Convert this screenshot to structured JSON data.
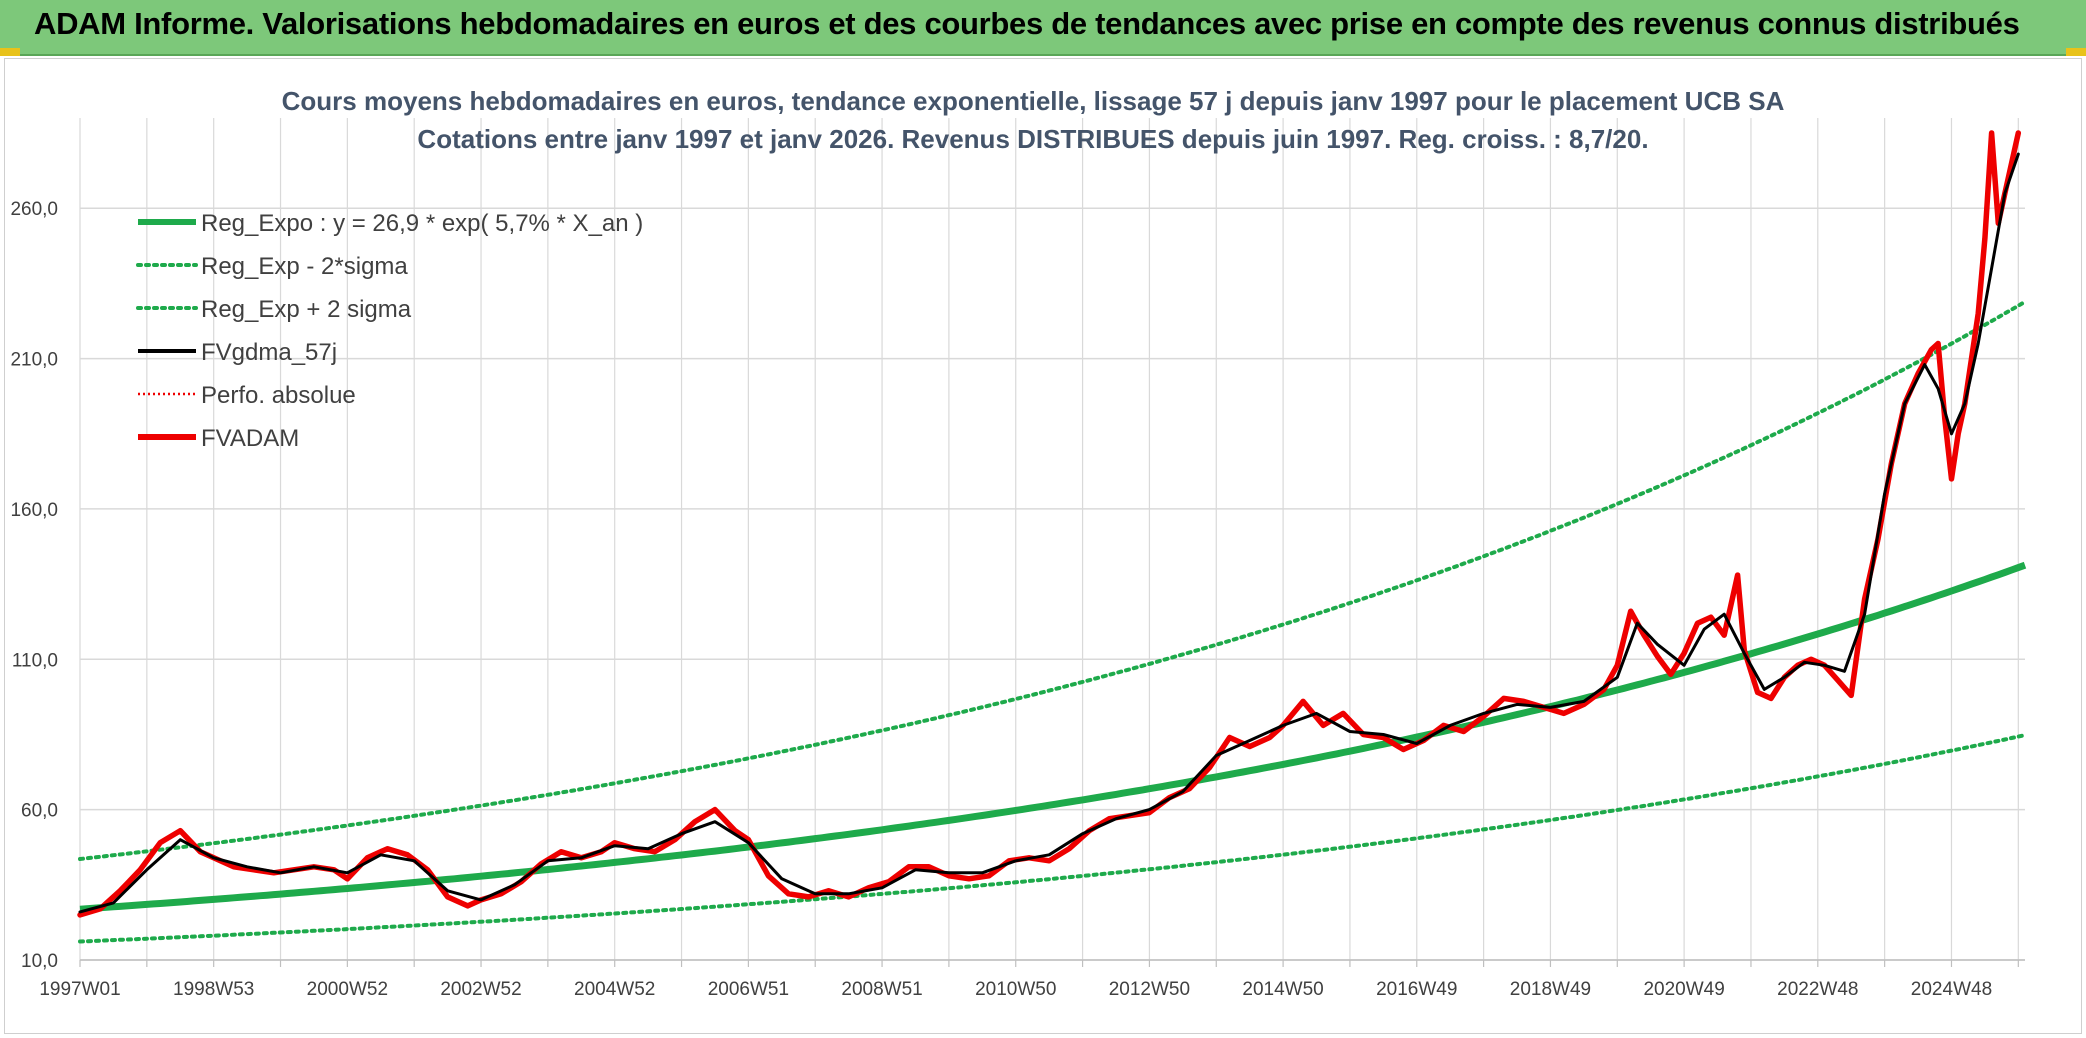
{
  "banner": {
    "title": "ADAM Informe. Valorisations hebdomadaires en euros et des courbes de tendances avec prise en compte des revenus connus distribués"
  },
  "colors": {
    "banner_bg": "#7dc87a",
    "reg_green": "#1eaa4b",
    "fvadam_red": "#ee0000",
    "smooth_black": "#000000",
    "grid": "#d9d9d9",
    "title_text": "#44546a"
  },
  "chart_data": {
    "type": "line",
    "title": "Cours moyens hebdomadaires en euros, tendance exponentielle, lissage 57 j depuis janv 1997 pour le placement UCB SA",
    "subtitle": "Cotations entre janv 1997 et janv 2026. Revenus DISTRIBUES depuis juin 1997. Reg. croiss. : 8,7/20.",
    "xlabel": "",
    "ylabel": "",
    "x_tick_labels": [
      "1997W01",
      "1998W53",
      "2000W52",
      "2002W52",
      "2004W52",
      "2006W51",
      "2008W51",
      "2010W50",
      "2012W50",
      "2014W50",
      "2016W49",
      "2018W49",
      "2020W49",
      "2022W48",
      "2024W48"
    ],
    "y_ticks": [
      "10,0",
      "60,0",
      "110,0",
      "160,0",
      "210,0",
      "260,0"
    ],
    "ylim": [
      10,
      290
    ],
    "xlim": [
      1997.0,
      2026.1
    ],
    "grid": true,
    "legend_position": "top-left",
    "legend": [
      {
        "label": "Reg_Expo : y = 26,9 * exp( 5,7% *  X_an )",
        "style": "solid-thick",
        "color": "#1eaa4b"
      },
      {
        "label": "Reg_Exp - 2*sigma",
        "style": "dotted",
        "color": "#1eaa4b"
      },
      {
        "label": "Reg_Exp + 2 sigma",
        "style": "dotted",
        "color": "#1eaa4b"
      },
      {
        "label": "FVgdma_57j",
        "style": "solid",
        "color": "#000000"
      },
      {
        "label": "Perfo. absolue",
        "style": "dotted-thin",
        "color": "#ee0000"
      },
      {
        "label": "FVADAM",
        "style": "solid-thick",
        "color": "#ee0000"
      }
    ],
    "regression": {
      "a": 26.9,
      "rate": 0.057,
      "lower_factor": 0.6,
      "upper_factor": 1.62
    },
    "series": [
      {
        "name": "FVADAM",
        "x": [
          1997.0,
          1997.3,
          1997.6,
          1997.9,
          1998.2,
          1998.5,
          1998.8,
          1999.0,
          1999.3,
          1999.6,
          1999.9,
          2000.2,
          2000.5,
          2000.8,
          2001.0,
          2001.3,
          2001.6,
          2001.9,
          2002.2,
          2002.5,
          2002.8,
          2003.0,
          2003.3,
          2003.6,
          2003.9,
          2004.2,
          2004.5,
          2004.8,
          2005.0,
          2005.3,
          2005.6,
          2005.9,
          2006.2,
          2006.5,
          2006.8,
          2007.0,
          2007.3,
          2007.6,
          2007.9,
          2008.2,
          2008.5,
          2008.8,
          2009.1,
          2009.4,
          2009.7,
          2010.0,
          2010.3,
          2010.6,
          2010.9,
          2011.2,
          2011.5,
          2011.8,
          2012.1,
          2012.4,
          2012.7,
          2013.0,
          2013.3,
          2013.6,
          2013.9,
          2014.2,
          2014.5,
          2014.8,
          2015.0,
          2015.3,
          2015.6,
          2015.9,
          2016.2,
          2016.5,
          2016.8,
          2017.1,
          2017.4,
          2017.7,
          2018.0,
          2018.3,
          2018.6,
          2018.9,
          2019.2,
          2019.5,
          2019.8,
          2020.0,
          2020.2,
          2020.4,
          2020.6,
          2020.8,
          2021.0,
          2021.2,
          2021.4,
          2021.6,
          2021.8,
          2021.9,
          2022.1,
          2022.3,
          2022.5,
          2022.7,
          2022.9,
          2023.1,
          2023.3,
          2023.5,
          2023.7,
          2023.9,
          2024.1,
          2024.3,
          2024.5,
          2024.7,
          2024.8,
          2024.9,
          2025.0,
          2025.1,
          2025.2,
          2025.3,
          2025.4,
          2025.5,
          2025.6,
          2025.7,
          2025.8,
          2025.9,
          2026.0
        ],
        "values": [
          25,
          27,
          33,
          40,
          49,
          53,
          46,
          44,
          41,
          40,
          39,
          40,
          41,
          40,
          37,
          44,
          47,
          45,
          40,
          31,
          28,
          30,
          32,
          36,
          42,
          46,
          44,
          46,
          49,
          47,
          46,
          50,
          56,
          60,
          53,
          50,
          38,
          32,
          31,
          33,
          31,
          34,
          36,
          41,
          41,
          38,
          37,
          38,
          43,
          44,
          43,
          47,
          53,
          57,
          58,
          59,
          64,
          67,
          74,
          84,
          81,
          84,
          88,
          96,
          88,
          92,
          85,
          84,
          80,
          83,
          88,
          86,
          91,
          97,
          96,
          94,
          92,
          95,
          100,
          108,
          126,
          118,
          111,
          105,
          112,
          122,
          124,
          118,
          138,
          113,
          99,
          97,
          104,
          108,
          110,
          108,
          103,
          98,
          130,
          150,
          175,
          195,
          205,
          213,
          215,
          190,
          170,
          185,
          195,
          210,
          225,
          250,
          285,
          255,
          265,
          275,
          285
        ]
      },
      {
        "name": "FVgdma_57j",
        "x": [
          1997.0,
          1997.5,
          1998.0,
          1998.5,
          1999.0,
          1999.5,
          2000.0,
          2000.5,
          2001.0,
          2001.5,
          2002.0,
          2002.5,
          2003.0,
          2003.5,
          2004.0,
          2004.5,
          2005.0,
          2005.5,
          2006.0,
          2006.5,
          2007.0,
          2007.5,
          2008.0,
          2008.5,
          2009.0,
          2009.5,
          2010.0,
          2010.5,
          2011.0,
          2011.5,
          2012.0,
          2012.5,
          2013.0,
          2013.5,
          2014.0,
          2014.5,
          2015.0,
          2015.5,
          2016.0,
          2016.5,
          2017.0,
          2017.5,
          2018.0,
          2018.5,
          2019.0,
          2019.5,
          2020.0,
          2020.3,
          2020.6,
          2021.0,
          2021.3,
          2021.6,
          2021.9,
          2022.2,
          2022.5,
          2022.8,
          2023.1,
          2023.4,
          2023.7,
          2024.0,
          2024.3,
          2024.6,
          2024.8,
          2025.0,
          2025.2,
          2025.4,
          2025.6,
          2025.8,
          2026.0
        ],
        "values": [
          26,
          29,
          40,
          50,
          44,
          41,
          39,
          41,
          39,
          45,
          43,
          33,
          30,
          35,
          43,
          44,
          48,
          47,
          52,
          56,
          49,
          37,
          32,
          32,
          34,
          40,
          39,
          39,
          43,
          45,
          52,
          57,
          60,
          66,
          78,
          83,
          88,
          92,
          86,
          85,
          82,
          88,
          92,
          95,
          94,
          96,
          104,
          122,
          115,
          108,
          120,
          125,
          112,
          100,
          104,
          109,
          108,
          106,
          125,
          165,
          195,
          208,
          200,
          185,
          195,
          215,
          240,
          265,
          278
        ]
      }
    ]
  }
}
